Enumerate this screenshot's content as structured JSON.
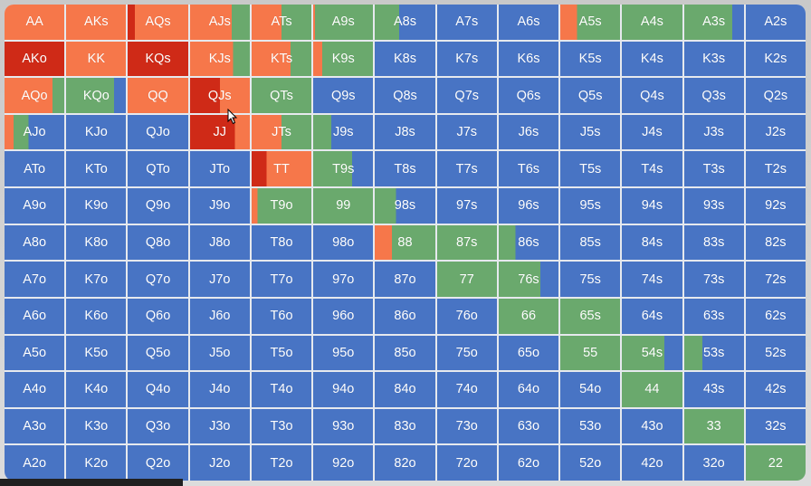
{
  "colors": {
    "fold": "#4874c4",
    "call": "#6aa96d",
    "raise": "#f6774a",
    "allin": "#cf2a17"
  },
  "grid": {
    "rows": [
      [
        "AA",
        "AKs",
        "AQs",
        "AJs",
        "ATs",
        "A9s",
        "A8s",
        "A7s",
        "A6s",
        "A5s",
        "A4s",
        "A3s",
        "A2s"
      ],
      [
        "AKo",
        "KK",
        "KQs",
        "KJs",
        "KTs",
        "K9s",
        "K8s",
        "K7s",
        "K6s",
        "K5s",
        "K4s",
        "K3s",
        "K2s"
      ],
      [
        "AQo",
        "KQo",
        "QQ",
        "QJs",
        "QTs",
        "Q9s",
        "Q8s",
        "Q7s",
        "Q6s",
        "Q5s",
        "Q4s",
        "Q3s",
        "Q2s"
      ],
      [
        "AJo",
        "KJo",
        "QJo",
        "JJ",
        "JTs",
        "J9s",
        "J8s",
        "J7s",
        "J6s",
        "J5s",
        "J4s",
        "J3s",
        "J2s"
      ],
      [
        "ATo",
        "KTo",
        "QTo",
        "JTo",
        "TT",
        "T9s",
        "T8s",
        "T7s",
        "T6s",
        "T5s",
        "T4s",
        "T3s",
        "T2s"
      ],
      [
        "A9o",
        "K9o",
        "Q9o",
        "J9o",
        "T9o",
        "99",
        "98s",
        "97s",
        "96s",
        "95s",
        "94s",
        "93s",
        "92s"
      ],
      [
        "A8o",
        "K8o",
        "Q8o",
        "J8o",
        "T8o",
        "98o",
        "88",
        "87s",
        "86s",
        "85s",
        "84s",
        "83s",
        "82s"
      ],
      [
        "A7o",
        "K7o",
        "Q7o",
        "J7o",
        "T7o",
        "97o",
        "87o",
        "77",
        "76s",
        "75s",
        "74s",
        "73s",
        "72s"
      ],
      [
        "A6o",
        "K6o",
        "Q6o",
        "J6o",
        "T6o",
        "96o",
        "86o",
        "76o",
        "66",
        "65s",
        "64s",
        "63s",
        "62s"
      ],
      [
        "A5o",
        "K5o",
        "Q5o",
        "J5o",
        "T5o",
        "95o",
        "85o",
        "75o",
        "65o",
        "55",
        "54s",
        "53s",
        "52s"
      ],
      [
        "A4o",
        "K4o",
        "Q4o",
        "J4o",
        "T4o",
        "94o",
        "84o",
        "74o",
        "64o",
        "54o",
        "44",
        "43s",
        "42s"
      ],
      [
        "A3o",
        "K3o",
        "Q3o",
        "J3o",
        "T3o",
        "93o",
        "83o",
        "73o",
        "63o",
        "53o",
        "43o",
        "33",
        "32s"
      ],
      [
        "A2o",
        "K2o",
        "Q2o",
        "J2o",
        "T2o",
        "92o",
        "82o",
        "72o",
        "62o",
        "52o",
        "42o",
        "32o",
        "22"
      ]
    ]
  },
  "strategy": {
    "AA": [
      [
        "raise",
        1
      ]
    ],
    "AKs": [
      [
        "raise",
        1
      ]
    ],
    "AQs": [
      [
        "allin",
        0.12
      ],
      [
        "raise",
        0.88
      ]
    ],
    "AJs": [
      [
        "raise",
        0.7
      ],
      [
        "call",
        0.3
      ]
    ],
    "ATs": [
      [
        "raise",
        0.5
      ],
      [
        "call",
        0.5
      ]
    ],
    "A9s": [
      [
        "raise",
        0.03
      ],
      [
        "call",
        0.97
      ]
    ],
    "A8s": [
      [
        "call",
        0.4
      ],
      [
        "fold",
        0.6
      ]
    ],
    "A5s": [
      [
        "raise",
        0.28
      ],
      [
        "call",
        0.72
      ]
    ],
    "A4s": [
      [
        "call",
        1
      ]
    ],
    "A3s": [
      [
        "call",
        0.8
      ],
      [
        "fold",
        0.2
      ]
    ],
    "AKo": [
      [
        "allin",
        1
      ]
    ],
    "KK": [
      [
        "raise",
        1
      ]
    ],
    "KQs": [
      [
        "allin",
        1
      ]
    ],
    "KJs": [
      [
        "raise",
        0.72
      ],
      [
        "call",
        0.28
      ]
    ],
    "KTs": [
      [
        "raise",
        0.65
      ],
      [
        "call",
        0.35
      ]
    ],
    "K9s": [
      [
        "raise",
        0.15
      ],
      [
        "call",
        0.85
      ]
    ],
    "AQo": [
      [
        "raise",
        0.8
      ],
      [
        "call",
        0.2
      ]
    ],
    "KQo": [
      [
        "call",
        0.8
      ],
      [
        "fold",
        0.2
      ]
    ],
    "QQ": [
      [
        "raise",
        1
      ]
    ],
    "QJs": [
      [
        "allin",
        0.5
      ],
      [
        "raise",
        0.5
      ]
    ],
    "QTs": [
      [
        "call",
        1
      ]
    ],
    "AJo": [
      [
        "raise",
        0.15
      ],
      [
        "call",
        0.25
      ],
      [
        "fold",
        0.6
      ]
    ],
    "JJ": [
      [
        "allin",
        0.75
      ],
      [
        "raise",
        0.25
      ]
    ],
    "JTs": [
      [
        "raise",
        0.5
      ],
      [
        "call",
        0.5
      ]
    ],
    "J9s": [
      [
        "call",
        0.3
      ],
      [
        "fold",
        0.7
      ]
    ],
    "TT": [
      [
        "allin",
        0.25
      ],
      [
        "raise",
        0.75
      ]
    ],
    "T9s": [
      [
        "call",
        0.65
      ],
      [
        "fold",
        0.35
      ]
    ],
    "T9o": [
      [
        "raise",
        0.1
      ],
      [
        "call",
        0.9
      ]
    ],
    "99": [
      [
        "call",
        1
      ]
    ],
    "98s": [
      [
        "call",
        0.35
      ],
      [
        "fold",
        0.65
      ]
    ],
    "88": [
      [
        "raise",
        0.28
      ],
      [
        "call",
        0.72
      ]
    ],
    "87s": [
      [
        "call",
        1
      ]
    ],
    "86s": [
      [
        "call",
        0.28
      ],
      [
        "fold",
        0.72
      ]
    ],
    "77": [
      [
        "call",
        1
      ]
    ],
    "76s": [
      [
        "call",
        0.7
      ],
      [
        "fold",
        0.3
      ]
    ],
    "66": [
      [
        "call",
        1
      ]
    ],
    "65s": [
      [
        "call",
        1
      ]
    ],
    "55": [
      [
        "call",
        1
      ]
    ],
    "54s": [
      [
        "call",
        0.7
      ],
      [
        "fold",
        0.3
      ]
    ],
    "53s": [
      [
        "call",
        0.3
      ],
      [
        "fold",
        0.7
      ]
    ],
    "44": [
      [
        "call",
        1
      ]
    ],
    "33": [
      [
        "call",
        1
      ]
    ],
    "22": [
      [
        "call",
        1
      ]
    ]
  }
}
